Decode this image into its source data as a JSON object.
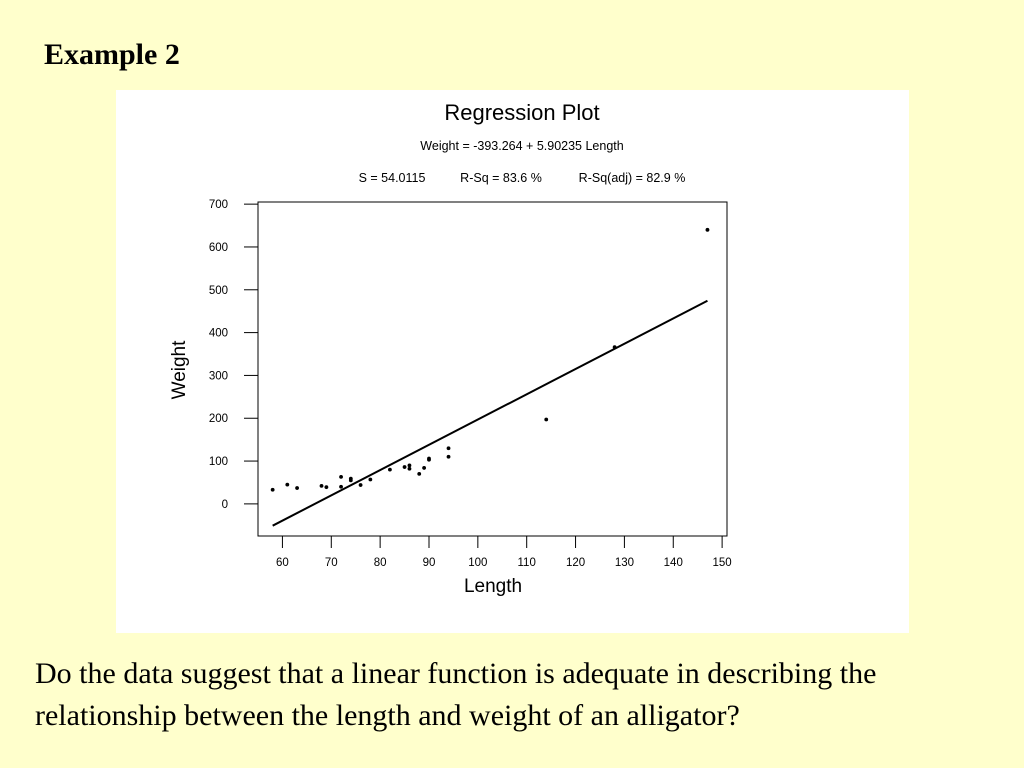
{
  "slide": {
    "title": "Example 2",
    "question": "Do the data suggest that a linear function is adequate in describing the relationship between the length and weight of an alligator?"
  },
  "chart_data": {
    "type": "scatter",
    "title": "Regression Plot",
    "equation": "Weight = -393.264 + 5.90235 Length",
    "stats": {
      "s": "S = 54.0115",
      "r_sq": "R-Sq = 83.6 %",
      "r_sq_adj": "R-Sq(adj) = 82.9 %"
    },
    "xlabel": "Length",
    "ylabel": "Weight",
    "xlim": [
      55,
      151
    ],
    "ylim": [
      -75,
      705
    ],
    "x_ticks": [
      60,
      70,
      80,
      90,
      100,
      110,
      120,
      130,
      140,
      150
    ],
    "y_ticks": [
      0,
      100,
      200,
      300,
      400,
      500,
      600,
      700
    ],
    "grid": false,
    "points": [
      {
        "x": 58,
        "y": 33
      },
      {
        "x": 61,
        "y": 45
      },
      {
        "x": 63,
        "y": 37
      },
      {
        "x": 68,
        "y": 42
      },
      {
        "x": 69,
        "y": 39
      },
      {
        "x": 72,
        "y": 63
      },
      {
        "x": 72,
        "y": 40
      },
      {
        "x": 74,
        "y": 55
      },
      {
        "x": 74,
        "y": 59
      },
      {
        "x": 76,
        "y": 44
      },
      {
        "x": 78,
        "y": 57
      },
      {
        "x": 82,
        "y": 80
      },
      {
        "x": 85,
        "y": 86
      },
      {
        "x": 86,
        "y": 90
      },
      {
        "x": 86,
        "y": 82
      },
      {
        "x": 88,
        "y": 70
      },
      {
        "x": 89,
        "y": 84
      },
      {
        "x": 90,
        "y": 106
      },
      {
        "x": 90,
        "y": 103
      },
      {
        "x": 94,
        "y": 130
      },
      {
        "x": 94,
        "y": 110
      },
      {
        "x": 114,
        "y": 197
      },
      {
        "x": 128,
        "y": 366
      },
      {
        "x": 147,
        "y": 640
      }
    ],
    "fit_line": {
      "intercept": -393.264,
      "slope": 5.90235,
      "x_range": [
        58,
        147
      ]
    }
  }
}
